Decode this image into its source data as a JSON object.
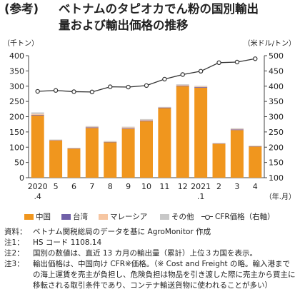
{
  "title": {
    "prefix": "(参考)",
    "line1": "ベトナムのタピオカでん粉の国別輸出",
    "line2": "量および輸出価格の推移"
  },
  "chart_data": {
    "type": "bar",
    "stacked": true,
    "left_unit": "（千トン）",
    "right_unit": "（米ドル/トン）",
    "x_unit": "（年.月）",
    "ylim": [
      0,
      400
    ],
    "y_ticks": [
      "0",
      "50",
      "100",
      "150",
      "200",
      "250",
      "300",
      "350",
      "400"
    ],
    "y2lim": [
      100,
      500
    ],
    "y2_ticks": [
      "100",
      "150",
      "200",
      "250",
      "300",
      "350",
      "400",
      "450",
      "500"
    ],
    "categories": [
      {
        "line1": "2020",
        "line2": ".4"
      },
      {
        "line1": "5",
        "line2": ""
      },
      {
        "line1": "6",
        "line2": ""
      },
      {
        "line1": "7",
        "line2": ""
      },
      {
        "line1": "8",
        "line2": ""
      },
      {
        "line1": "9",
        "line2": ""
      },
      {
        "line1": "10",
        "line2": ""
      },
      {
        "line1": "11",
        "line2": ""
      },
      {
        "line1": "12",
        "line2": ""
      },
      {
        "line1": "2021",
        "line2": ".1"
      },
      {
        "line1": "2",
        "line2": ""
      },
      {
        "line1": "3",
        "line2": ""
      },
      {
        "line1": "4",
        "line2": ""
      }
    ],
    "series": [
      {
        "name": "中国",
        "color": "#f0961e",
        "values": [
          204,
          122,
          95,
          163,
          116,
          160,
          185,
          228,
          300,
          295,
          111,
          156,
          102
        ]
      },
      {
        "name": "台湾",
        "color": "#7060a8",
        "values": [
          2,
          1,
          1,
          2,
          1,
          2,
          2,
          2,
          2,
          2,
          1,
          2,
          1
        ]
      },
      {
        "name": "マレーシア",
        "color": "#f6c6a2",
        "values": [
          3,
          1,
          1,
          2,
          1,
          3,
          3,
          1,
          2,
          2,
          1,
          2,
          1
        ]
      },
      {
        "name": "その他",
        "color": "#c8c8c8",
        "values": [
          5,
          1,
          1,
          2,
          2,
          2,
          2,
          1,
          2,
          2,
          1,
          2,
          1
        ]
      }
    ],
    "line_series": {
      "name": "CFR価格（右軸）",
      "color": "#333333",
      "values": [
        383,
        386,
        382,
        381,
        398,
        397,
        402,
        423,
        438,
        449,
        477,
        479,
        490
      ]
    },
    "grid": false
  },
  "legend": {
    "china": "中国",
    "taiwan": "台湾",
    "malaysia": "マレーシア",
    "other": "その他",
    "cfr": "CFR価格（右軸）"
  },
  "notes": [
    {
      "label": "資料：",
      "text": "ベトナム関税総局のデータを基に AgroMonitor 作成"
    },
    {
      "label": "注1：",
      "text": "HS コード 1108.14"
    },
    {
      "label": "注2：",
      "text": "国別の数値は、直近 13 カ月の輸出量（累計）上位３カ国を表示。"
    },
    {
      "label": "注3：",
      "text": "輸出価格は、中国向け CFR※価格。（※ Cost and Freight の略。輸入港までの海上運賃を売主が負担し、危険負担は物品を引き渡した際に売主から買主に移転される取引条件であり、コンテナ輸送貨物に使われることが多い）"
    }
  ]
}
